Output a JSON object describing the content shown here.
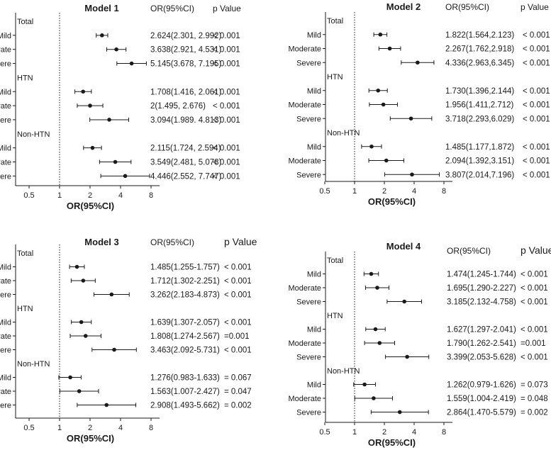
{
  "colors": {
    "ink": "#1a1a1a",
    "background": "#ffffff"
  },
  "labels": {
    "or_header": "OR(95%CI)",
    "p_header": "p Value",
    "xlabel": "OR(95%CI)",
    "ticks": [
      "0.5",
      "1",
      "2",
      "4",
      "8"
    ]
  },
  "chart_data": [
    {
      "type": "forest",
      "title": "Model 1",
      "xscale": "log2",
      "xlim": [
        0.5,
        8
      ],
      "reference_line": 1,
      "rows": [
        {
          "kind": "group",
          "label": "Total"
        },
        {
          "kind": "item",
          "label": "Mild",
          "or": 2.624,
          "lo": 2.301,
          "hi": 2.992,
          "or_text": "2.624(2.301, 2.992)",
          "p_text": "< 0.001"
        },
        {
          "kind": "item",
          "label": "Moderate",
          "or": 3.638,
          "lo": 2.921,
          "hi": 4.531,
          "or_text": "3.638(2.921, 4.531)",
          "p_text": "< 0.001"
        },
        {
          "kind": "item",
          "label": "Severe",
          "or": 5.145,
          "lo": 3.678,
          "hi": 7.195,
          "or_text": "5.145(3.678, 7.195)",
          "p_text": "< 0.001"
        },
        {
          "kind": "group",
          "label": "HTN"
        },
        {
          "kind": "item",
          "label": "Mild",
          "or": 1.708,
          "lo": 1.416,
          "hi": 2.061,
          "or_text": "1.708(1.416, 2.061)",
          "p_text": "< 0.001"
        },
        {
          "kind": "item",
          "label": "Moderate",
          "or": 2,
          "lo": 1.495,
          "hi": 2.676,
          "or_text": "2(1.495, 2.676)",
          "p_text": "< 0.001"
        },
        {
          "kind": "item",
          "label": "Severe",
          "or": 3.094,
          "lo": 1.989,
          "hi": 4.813,
          "or_text": "3.094(1.989. 4.813)",
          "p_text": "< 0.001"
        },
        {
          "kind": "group",
          "label": "Non-HTN"
        },
        {
          "kind": "item",
          "label": "Mild",
          "or": 2.115,
          "lo": 1.724,
          "hi": 2.594,
          "or_text": "2.115(1.724, 2.594)",
          "p_text": "< 0.001"
        },
        {
          "kind": "item",
          "label": "Moderate",
          "or": 3.549,
          "lo": 2.481,
          "hi": 5.078,
          "or_text": "3.549(2.481, 5.078)",
          "p_text": "< 0.001"
        },
        {
          "kind": "item",
          "label": "Severe",
          "or": 4.446,
          "lo": 2.552,
          "hi": 7.747,
          "or_text": "4.446(2.552, 7.747)",
          "p_text": "< 0.001"
        }
      ]
    },
    {
      "type": "forest",
      "title": "Model 2",
      "xscale": "log2",
      "xlim": [
        0.5,
        8
      ],
      "reference_line": 1,
      "rows": [
        {
          "kind": "group",
          "label": "Total"
        },
        {
          "kind": "item",
          "label": "Mild",
          "or": 1.822,
          "lo": 1.564,
          "hi": 2.123,
          "or_text": "1.822(1.564,2.123)",
          "p_text": "< 0.001"
        },
        {
          "kind": "item",
          "label": "Moderate",
          "or": 2.267,
          "lo": 1.762,
          "hi": 2.918,
          "or_text": "2.267(1.762,2.918)",
          "p_text": "< 0.001"
        },
        {
          "kind": "item",
          "label": "Severe",
          "or": 4.336,
          "lo": 2.963,
          "hi": 6.345,
          "or_text": "4.336(2.963,6.345)",
          "p_text": "< 0.001"
        },
        {
          "kind": "group",
          "label": "HTN"
        },
        {
          "kind": "item",
          "label": "Mild",
          "or": 1.73,
          "lo": 1.396,
          "hi": 2.144,
          "or_text": "1.730(1.396,2.144)",
          "p_text": "< 0.001"
        },
        {
          "kind": "item",
          "label": "Moderate",
          "or": 1.956,
          "lo": 1.411,
          "hi": 2.712,
          "or_text": "1.956(1.411,2.712)",
          "p_text": "< 0.001"
        },
        {
          "kind": "item",
          "label": "Severe",
          "or": 3.718,
          "lo": 2.293,
          "hi": 6.029,
          "or_text": "3.718(2.293,6.029)",
          "p_text": "< 0.001"
        },
        {
          "kind": "group",
          "label": "Non-HTN"
        },
        {
          "kind": "item",
          "label": "Mild",
          "or": 1.485,
          "lo": 1.177,
          "hi": 1.872,
          "or_text": "1.485(1.177,1.872)",
          "p_text": "< 0.001"
        },
        {
          "kind": "item",
          "label": "Moderate",
          "or": 2.094,
          "lo": 1.392,
          "hi": 3.151,
          "or_text": "2.094(1.392,3.151)",
          "p_text": "< 0.001"
        },
        {
          "kind": "item",
          "label": "Severe",
          "or": 3.807,
          "lo": 2.014,
          "hi": 7.196,
          "or_text": "3.807(2.014,7.196)",
          "p_text": "< 0.001"
        }
      ]
    },
    {
      "type": "forest",
      "title": "Model 3",
      "xscale": "log2",
      "xlim": [
        0.5,
        8
      ],
      "reference_line": 1,
      "rows": [
        {
          "kind": "group",
          "label": "Total"
        },
        {
          "kind": "item",
          "label": "Mild",
          "or": 1.485,
          "lo": 1.255,
          "hi": 1.757,
          "or_text": "1.485(1.255-1.757)",
          "p_text": "< 0.001"
        },
        {
          "kind": "item",
          "label": "Moderate",
          "or": 1.712,
          "lo": 1.302,
          "hi": 2.251,
          "or_text": "1.712(1.302-2.251)",
          "p_text": "< 0.001"
        },
        {
          "kind": "item",
          "label": "Severe",
          "or": 3.262,
          "lo": 2.183,
          "hi": 4.873,
          "or_text": "3.262(2.183-4.873)",
          "p_text": "< 0.001"
        },
        {
          "kind": "group",
          "label": "HTN"
        },
        {
          "kind": "item",
          "label": "Mild",
          "or": 1.639,
          "lo": 1.307,
          "hi": 2.057,
          "or_text": "1.639(1.307-2.057)",
          "p_text": "< 0.001"
        },
        {
          "kind": "item",
          "label": "Moderate",
          "or": 1.808,
          "lo": 1.274,
          "hi": 2.567,
          "or_text": "1.808(1.274-2.567)",
          "p_text": "=0.001"
        },
        {
          "kind": "item",
          "label": "Severe",
          "or": 3.463,
          "lo": 2.092,
          "hi": 5.731,
          "or_text": "3.463(2.092-5.731)",
          "p_text": "< 0.001"
        },
        {
          "kind": "group",
          "label": "Non-HTN"
        },
        {
          "kind": "item",
          "label": "Mild",
          "or": 1.276,
          "lo": 0.983,
          "hi": 1.633,
          "or_text": "1.276(0.983-1.633)",
          "p_text": "= 0.067"
        },
        {
          "kind": "item",
          "label": "Moderate",
          "or": 1.563,
          "lo": 1.007,
          "hi": 2.427,
          "or_text": "1.563(1.007-2.427)",
          "p_text": "= 0.047"
        },
        {
          "kind": "item",
          "label": "Severe",
          "or": 2.908,
          "lo": 1.493,
          "hi": 5.662,
          "or_text": "2.908(1.493-5.662)",
          "p_text": "= 0.002"
        }
      ]
    },
    {
      "type": "forest",
      "title": "Model 4",
      "xscale": "log2",
      "xlim": [
        0.5,
        8
      ],
      "reference_line": 1,
      "rows": [
        {
          "kind": "group",
          "label": "Total"
        },
        {
          "kind": "item",
          "label": "Mild",
          "or": 1.474,
          "lo": 1.245,
          "hi": 1.744,
          "or_text": "1.474(1.245-1.744)",
          "p_text": "< 0.001"
        },
        {
          "kind": "item",
          "label": "Moderate",
          "or": 1.695,
          "lo": 1.29,
          "hi": 2.227,
          "or_text": "1.695(1.290-2.227)",
          "p_text": "< 0.001"
        },
        {
          "kind": "item",
          "label": "Severe",
          "or": 3.185,
          "lo": 2.132,
          "hi": 4.758,
          "or_text": "3.185(2.132-4.758)",
          "p_text": "< 0.001"
        },
        {
          "kind": "group",
          "label": "HTN"
        },
        {
          "kind": "item",
          "label": "Mild",
          "or": 1.627,
          "lo": 1.297,
          "hi": 2.041,
          "or_text": "1.627(1.297-2.041)",
          "p_text": "< 0.001"
        },
        {
          "kind": "item",
          "label": "Moderate",
          "or": 1.79,
          "lo": 1.262,
          "hi": 2.541,
          "or_text": "1.790(1.262-2.541)",
          "p_text": "=0.001"
        },
        {
          "kind": "item",
          "label": "Severe",
          "or": 3.399,
          "lo": 2.053,
          "hi": 5.628,
          "or_text": "3.399(2.053-5.628)",
          "p_text": "< 0.001"
        },
        {
          "kind": "group",
          "label": "Non-HTN"
        },
        {
          "kind": "item",
          "label": "Mild",
          "or": 1.262,
          "lo": 0.979,
          "hi": 1.626,
          "or_text": "1.262(0.979-1.626)",
          "p_text": "= 0.073"
        },
        {
          "kind": "item",
          "label": "Moderate",
          "or": 1.559,
          "lo": 1.004,
          "hi": 2.419,
          "or_text": "1.559(1.004-2.419)",
          "p_text": "= 0.048"
        },
        {
          "kind": "item",
          "label": "Severe",
          "or": 2.864,
          "lo": 1.47,
          "hi": 5.579,
          "or_text": "2.864(1.470-5.579)",
          "p_text": "= 0.002"
        }
      ]
    }
  ]
}
